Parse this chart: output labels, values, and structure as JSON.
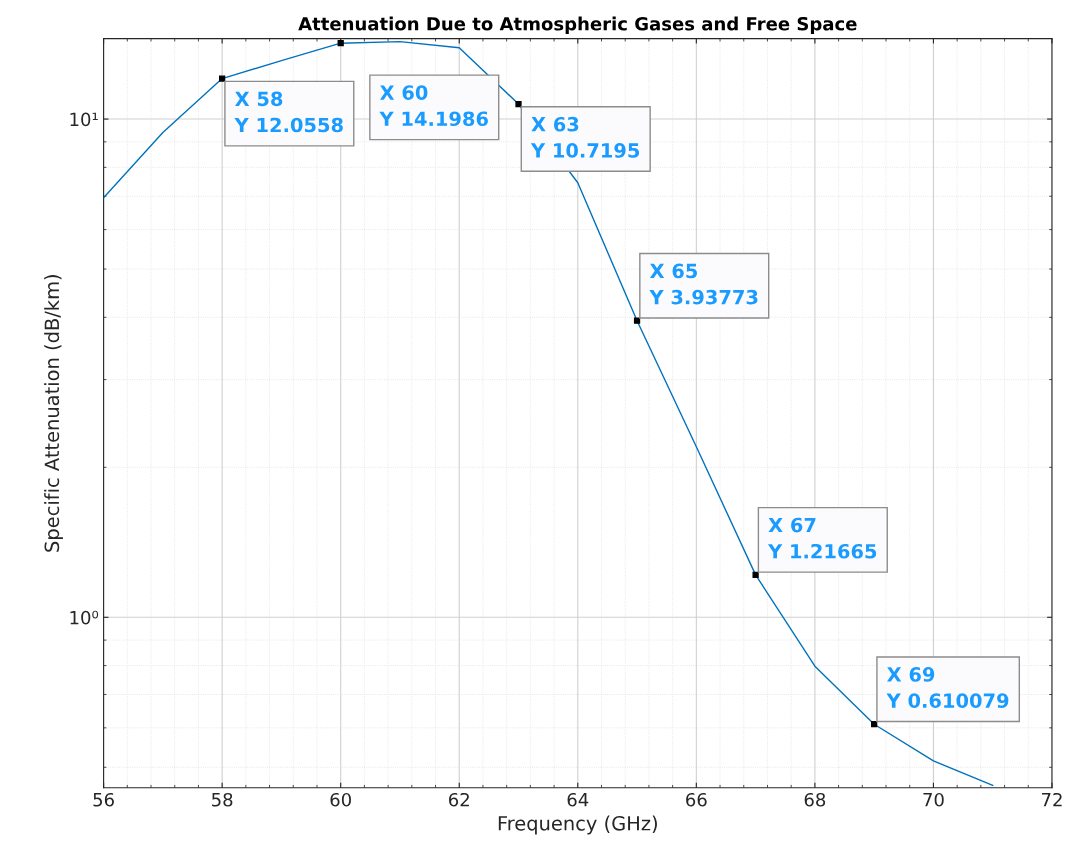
{
  "chart_data": {
    "type": "line",
    "title": "Attenuation Due to Atmospheric Gases and Free Space",
    "xlabel": "Frequency (GHz)",
    "ylabel": "Specific Attenuation (dB/km)",
    "x": [
      56,
      57,
      58,
      59,
      60,
      61,
      62,
      63,
      64,
      65,
      66,
      67,
      68,
      69,
      70,
      71
    ],
    "series": [
      {
        "color": "#0072bd",
        "values": [
          6.95,
          9.4,
          12.0558,
          13.1,
          14.1986,
          14.3,
          13.9,
          10.7195,
          7.45,
          3.93773,
          2.2,
          1.21665,
          0.798,
          0.610079,
          0.515,
          0.46
        ]
      }
    ],
    "xlim": [
      56,
      72
    ],
    "xticks": [
      56,
      58,
      60,
      62,
      64,
      66,
      68,
      70,
      72
    ],
    "ylim": [
      0.455,
      14.5
    ],
    "yticks": [
      {
        "value": 1,
        "label": "10⁰"
      },
      {
        "value": 10,
        "label": "10¹"
      }
    ],
    "log": "y",
    "grid": true,
    "marker": "none",
    "line_style": "solid",
    "annotations": [
      {
        "text": "X 58\nY 12.0558",
        "x": 58,
        "y": 12.0558
      },
      {
        "text": "X 60\nY 14.1986",
        "x": 60,
        "y": 14.1986
      },
      {
        "text": "X 63\nY 10.7195",
        "x": 63,
        "y": 10.7195
      },
      {
        "text": "X 65\nY 3.93773",
        "x": 65,
        "y": 3.93773
      },
      {
        "text": "X 67\nY 1.21665",
        "x": 67,
        "y": 1.21665
      },
      {
        "text": "X 69\nY 0.610079",
        "x": 69,
        "y": 0.610079
      }
    ]
  }
}
